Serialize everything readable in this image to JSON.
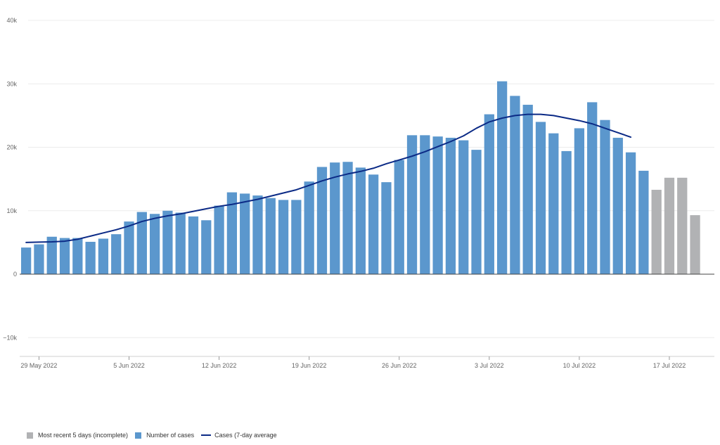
{
  "chart_data": {
    "type": "bar",
    "title": "",
    "xlabel": "",
    "ylabel": "",
    "ylim": [
      -12000,
      40000
    ],
    "y_ticks": [
      {
        "value": 40000,
        "label": "40k"
      },
      {
        "value": 30000,
        "label": "30k"
      },
      {
        "value": 20000,
        "label": "20k"
      },
      {
        "value": 10000,
        "label": "10k"
      },
      {
        "value": 0,
        "label": "0"
      },
      {
        "value": -10000,
        "label": "−10k"
      }
    ],
    "x_ticks": [
      {
        "date": "2022-05-29",
        "label": "29 May 2022"
      },
      {
        "date": "2022-06-05",
        "label": "5 Jun 2022"
      },
      {
        "date": "2022-06-12",
        "label": "12 Jun 2022"
      },
      {
        "date": "2022-06-19",
        "label": "19 Jun 2022"
      },
      {
        "date": "2022-06-26",
        "label": "26 Jun 2022"
      },
      {
        "date": "2022-07-03",
        "label": "3 Jul 2022"
      },
      {
        "date": "2022-07-10",
        "label": "10 Jul 2022"
      },
      {
        "date": "2022-07-17",
        "label": "17 Jul 2022"
      }
    ],
    "grid": true,
    "legend_position": "bottom-left",
    "dates": [
      "2022-05-28",
      "2022-05-29",
      "2022-05-30",
      "2022-05-31",
      "2022-06-01",
      "2022-06-02",
      "2022-06-03",
      "2022-06-04",
      "2022-06-05",
      "2022-06-06",
      "2022-06-07",
      "2022-06-08",
      "2022-06-09",
      "2022-06-10",
      "2022-06-11",
      "2022-06-12",
      "2022-06-13",
      "2022-06-14",
      "2022-06-15",
      "2022-06-16",
      "2022-06-17",
      "2022-06-18",
      "2022-06-19",
      "2022-06-20",
      "2022-06-21",
      "2022-06-22",
      "2022-06-23",
      "2022-06-24",
      "2022-06-25",
      "2022-06-26",
      "2022-06-27",
      "2022-06-28",
      "2022-06-29",
      "2022-06-30",
      "2022-07-01",
      "2022-07-02",
      "2022-07-03",
      "2022-07-04",
      "2022-07-05",
      "2022-07-06",
      "2022-07-07",
      "2022-07-08",
      "2022-07-09",
      "2022-07-10",
      "2022-07-11",
      "2022-07-12",
      "2022-07-13",
      "2022-07-14",
      "2022-07-15",
      "2022-07-16",
      "2022-07-17",
      "2022-07-18",
      "2022-07-19",
      "2022-07-20"
    ],
    "series": [
      {
        "name": "Number of cases",
        "kind": "bar",
        "color": "#5b97cd",
        "values": [
          4200,
          4700,
          5900,
          5700,
          5700,
          5100,
          5600,
          6300,
          8300,
          9800,
          9500,
          10000,
          9700,
          9100,
          8500,
          10800,
          12900,
          12700,
          12400,
          12000,
          11700,
          11700,
          14600,
          16900,
          17600,
          17700,
          16800,
          15700,
          14500,
          18000,
          21900,
          21900,
          21700,
          21500,
          21100,
          19600,
          25200,
          30400,
          28100,
          26700,
          24000,
          22200,
          19400,
          23000,
          27100,
          24300,
          21500,
          19200,
          16300,
          null,
          null,
          null,
          null,
          null
        ]
      },
      {
        "name": "Most recent 5 days (incomplete)",
        "kind": "bar",
        "color": "#b1b2b4",
        "values": [
          null,
          null,
          null,
          null,
          null,
          null,
          null,
          null,
          null,
          null,
          null,
          null,
          null,
          null,
          null,
          null,
          null,
          null,
          null,
          null,
          null,
          null,
          null,
          null,
          null,
          null,
          null,
          null,
          null,
          null,
          null,
          null,
          null,
          null,
          null,
          null,
          null,
          null,
          null,
          null,
          null,
          null,
          null,
          null,
          null,
          null,
          null,
          null,
          null,
          13300,
          15200,
          15200,
          9300,
          null
        ]
      },
      {
        "name": "Cases (7-day average",
        "kind": "line",
        "color": "#0b2a86",
        "values": [
          5000,
          5050,
          5100,
          5200,
          5500,
          6000,
          6500,
          7000,
          7600,
          8300,
          8800,
          9200,
          9500,
          9900,
          10300,
          10700,
          11000,
          11400,
          11800,
          12300,
          12800,
          13300,
          14000,
          14700,
          15300,
          15800,
          16200,
          16700,
          17400,
          18000,
          18600,
          19300,
          20100,
          20900,
          21800,
          23000,
          24000,
          24600,
          25000,
          25200,
          25200,
          25000,
          24600,
          24200,
          23700,
          23000,
          22300,
          21600,
          null,
          null,
          null,
          null,
          null,
          null
        ]
      }
    ]
  },
  "legend": {
    "items": [
      {
        "label": "Most recent 5 days (incomplete)",
        "color": "#b1b2b4"
      },
      {
        "label": "Number of cases",
        "color": "#5b97cd"
      },
      {
        "label": "Cases (7-day average",
        "color": "#0b2a86"
      }
    ]
  }
}
